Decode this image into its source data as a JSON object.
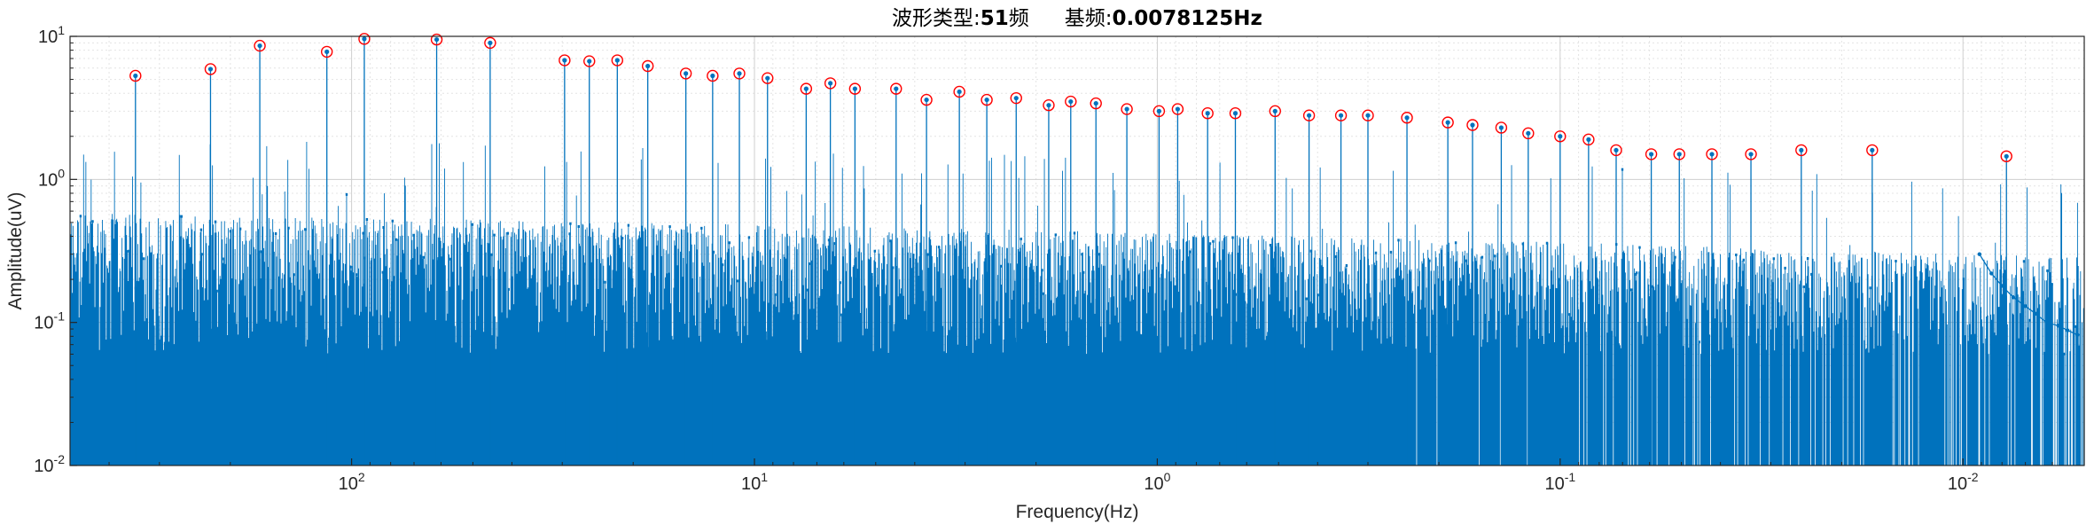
{
  "chart_data": {
    "type": "line",
    "title_prefix": "波形类型:",
    "title_value1": "51",
    "title_mid": "频",
    "title_gap": "基频:",
    "title_value2": "0.0078125Hz",
    "xlabel": "Frequency(Hz)",
    "ylabel": "Amplitude(uV)",
    "x_scale": "log",
    "x_direction": "reversed",
    "y_scale": "log",
    "xlim": [
      0.005,
      500
    ],
    "ylim": [
      0.01,
      10
    ],
    "grid": true,
    "minor_grid": true,
    "x_ticks": [
      {
        "value": 100,
        "base": "10",
        "exp": "2"
      },
      {
        "value": 10,
        "base": "10",
        "exp": "1"
      },
      {
        "value": 1,
        "base": "10",
        "exp": "0"
      },
      {
        "value": 0.1,
        "base": "10",
        "exp": "-1"
      },
      {
        "value": 0.01,
        "base": "10",
        "exp": "-2"
      }
    ],
    "y_ticks": [
      {
        "value": 10,
        "base": "10",
        "exp": "1"
      },
      {
        "value": 1,
        "base": "10",
        "exp": "0"
      },
      {
        "value": 0.1,
        "base": "10",
        "exp": "-1"
      },
      {
        "value": 0.01,
        "base": "10",
        "exp": "-2"
      }
    ],
    "line_color": "#0072BD",
    "marker_color": "#FF0000",
    "spectrum_tail": {
      "x": [
        0.0091,
        0.0085,
        0.008,
        0.0075,
        0.007,
        0.0066,
        0.0062,
        0.0058,
        0.0055,
        0.0052
      ],
      "y": [
        0.3,
        0.22,
        0.18,
        0.15,
        0.13,
        0.115,
        0.1,
        0.095,
        0.088,
        0.082
      ]
    },
    "marked_peaks": {
      "x": [
        344.0,
        224.0,
        169.0,
        115.2,
        93.0,
        61.5,
        45.3,
        29.6,
        25.7,
        21.9,
        18.4,
        14.8,
        12.7,
        10.9,
        9.28,
        7.44,
        6.48,
        5.63,
        4.45,
        3.74,
        3.1,
        2.65,
        2.24,
        1.86,
        1.64,
        1.42,
        1.19,
        0.99,
        0.89,
        0.75,
        0.64,
        0.51,
        0.42,
        0.35,
        0.3,
        0.24,
        0.19,
        0.165,
        0.14,
        0.12,
        0.1,
        0.085,
        0.0726,
        0.0594,
        0.0506,
        0.042,
        0.0336,
        0.0252,
        0.0168,
        0.0078
      ],
      "y": [
        5.3,
        5.9,
        8.6,
        7.8,
        9.6,
        9.5,
        9.0,
        6.8,
        6.7,
        6.8,
        6.2,
        5.5,
        5.3,
        5.5,
        5.1,
        4.3,
        4.7,
        4.3,
        4.3,
        3.6,
        4.1,
        3.6,
        3.7,
        3.3,
        3.5,
        3.4,
        3.1,
        3.0,
        3.1,
        2.9,
        2.9,
        3.0,
        2.8,
        2.8,
        2.8,
        2.7,
        2.5,
        2.4,
        2.3,
        2.1,
        2.0,
        1.9,
        1.6,
        1.5,
        1.5,
        1.5,
        1.5,
        1.6,
        1.6,
        1.45
      ]
    }
  }
}
